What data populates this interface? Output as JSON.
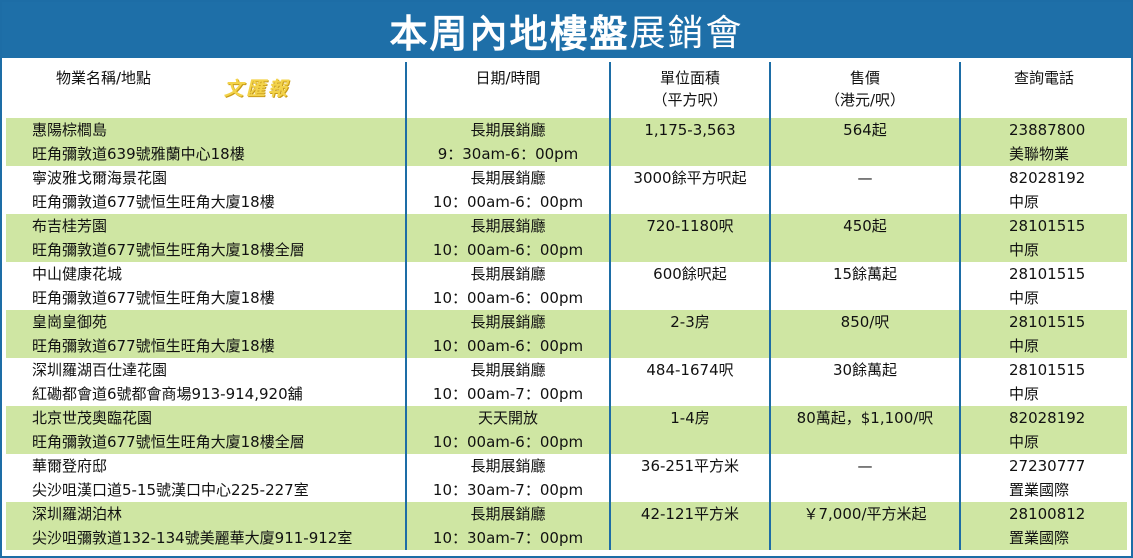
{
  "title": {
    "bold": "本周內地樓盤",
    "light": "展銷會"
  },
  "watermark": "文匯報",
  "headers": {
    "name": "物業名稱/地點",
    "date_l1": "日期/時間",
    "area_l1": "單位面積",
    "area_l2": "（平方呎）",
    "price_l1": "售價",
    "price_l2": "（港元/呎）",
    "phone": "查詢電話"
  },
  "rows": [
    {
      "name": "惠陽棕櫚島",
      "location": "旺角彌敦道639號雅蘭中心18樓",
      "date": "長期展銷廳",
      "time": "9：30am-6：00pm",
      "area": "1,175-3,563",
      "price": "564起",
      "phone": "23887800",
      "agent": "美聯物業"
    },
    {
      "name": "寧波雅戈爾海景花園",
      "location": "旺角彌敦道677號恒生旺角大廈18樓",
      "date": "長期展銷廳",
      "time": "10：00am-6：00pm",
      "area": "3000餘平方呎起",
      "price": "—",
      "phone": "82028192",
      "agent": "中原"
    },
    {
      "name": "布吉桂芳園",
      "location": "旺角彌敦道677號恒生旺角大廈18樓全層",
      "date": "長期展銷廳",
      "time": "10：00am-6：00pm",
      "area": "720-1180呎",
      "price": "450起",
      "phone": "28101515",
      "agent": "中原"
    },
    {
      "name": "中山健康花城",
      "location": "旺角彌敦道677號恒生旺角大廈18樓",
      "date": "長期展銷廳",
      "time": "10：00am-6：00pm",
      "area": "600餘呎起",
      "price": "15餘萬起",
      "phone": "28101515",
      "agent": "中原"
    },
    {
      "name": "皇崗皇御苑",
      "location": "旺角彌敦道677號恒生旺角大廈18樓",
      "date": "長期展銷廳",
      "time": "10：00am-6：00pm",
      "area": "2-3房",
      "price": "850/呎",
      "phone": "28101515",
      "agent": "中原"
    },
    {
      "name": "深圳羅湖百仕達花園",
      "location": "紅磡都會道6號都會商場913-914,920舖",
      "date": "長期展銷廳",
      "time": "10：00am-7：00pm",
      "area": "484-1674呎",
      "price": "30餘萬起",
      "phone": "28101515",
      "agent": "中原"
    },
    {
      "name": "北京世茂奧臨花園",
      "location": "旺角彌敦道677號恒生旺角大廈18樓全層",
      "date": "天天開放",
      "time": "10：00am-6：00pm",
      "area": "1-4房",
      "price": "80萬起，$1,100/呎",
      "phone": "82028192",
      "agent": "中原"
    },
    {
      "name": "華爾登府邸",
      "location": "尖沙咀漢口道5-15號漢口中心225-227室",
      "date": "長期展銷廳",
      "time": "10：30am-7：00pm",
      "area": "36-251平方米",
      "price": "—",
      "phone": "27230777",
      "agent": "置業國際"
    },
    {
      "name": "深圳羅湖泊林",
      "location": "尖沙咀彌敦道132-134號美麗華大廈911-912室",
      "date": "長期展銷廳",
      "time": "10：30am-7：00pm",
      "area": "42-121平方米",
      "price": "￥7,000/平方米起",
      "phone": "28100812",
      "agent": "置業國際"
    }
  ],
  "colors": {
    "header": "#1e6fa8",
    "band": "#cfe6a3",
    "border": "#1d6da6"
  }
}
